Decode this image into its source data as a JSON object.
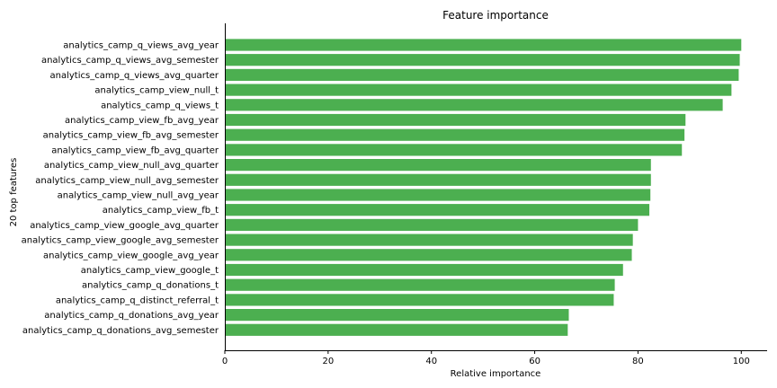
{
  "chart_data": {
    "type": "bar",
    "orientation": "horizontal",
    "title": "Feature importance",
    "xlabel": "Relative importance",
    "ylabel": "20 top features",
    "xlim": [
      0,
      105
    ],
    "xticks": [
      0,
      20,
      40,
      60,
      80,
      100
    ],
    "bar_color": "#4caf50",
    "grid": false,
    "categories": [
      "analytics_camp_q_views_avg_year",
      "analytics_camp_q_views_avg_semester",
      "analytics_camp_q_views_avg_quarter",
      "analytics_camp_view_null_t",
      "analytics_camp_q_views_t",
      "analytics_camp_view_fb_avg_year",
      "analytics_camp_view_fb_avg_semester",
      "analytics_camp_view_fb_avg_quarter",
      "analytics_camp_view_null_avg_quarter",
      "analytics_camp_view_null_avg_semester",
      "analytics_camp_view_null_avg_year",
      "analytics_camp_view_fb_t",
      "analytics_camp_view_google_avg_quarter",
      "analytics_camp_view_google_avg_semester",
      "analytics_camp_view_google_avg_year",
      "analytics_camp_view_google_t",
      "analytics_camp_q_donations_t",
      "analytics_camp_q_distinct_referral_t",
      "analytics_camp_q_donations_avg_year",
      "analytics_camp_q_donations_avg_semester"
    ],
    "values": [
      100,
      99.7,
      99.5,
      98.1,
      96.4,
      89.2,
      89.0,
      88.5,
      82.5,
      82.5,
      82.4,
      82.2,
      80.0,
      79.0,
      78.8,
      77.1,
      75.5,
      75.3,
      66.6,
      66.4
    ]
  }
}
